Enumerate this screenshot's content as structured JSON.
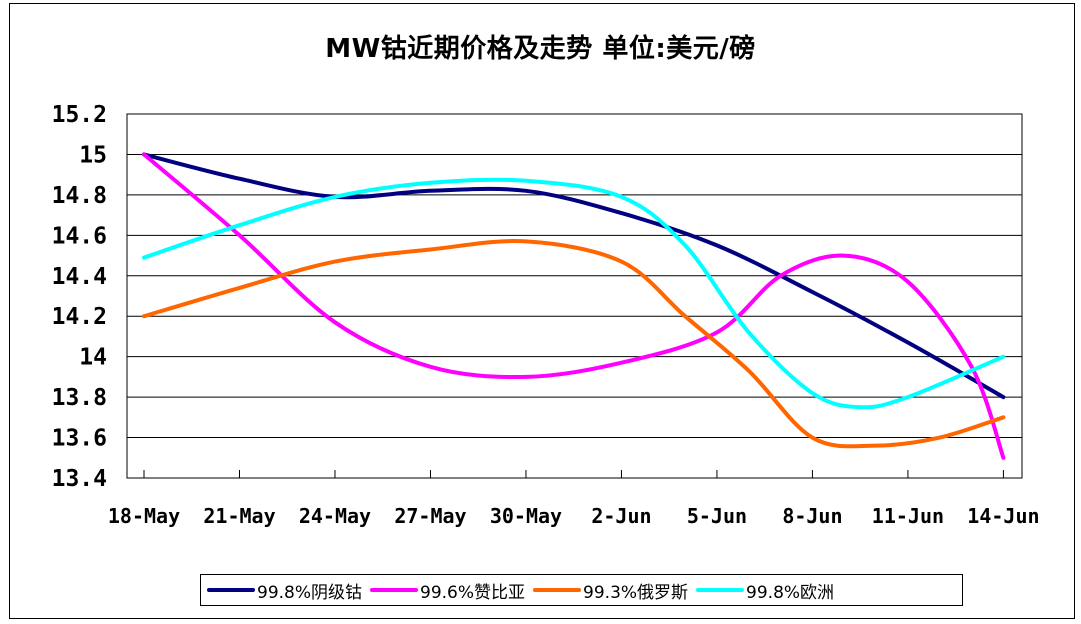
{
  "chart_data": {
    "type": "line",
    "title": "MW钴近期价格及走势 单位:美元/磅",
    "xlabel": "",
    "ylabel": "",
    "ylim": [
      13.4,
      15.2
    ],
    "yticks": [
      "15.2",
      "15",
      "14.8",
      "14.6",
      "14.4",
      "14.2",
      "14",
      "13.8",
      "13.6",
      "13.4"
    ],
    "x_tick_labels": [
      "18-May",
      "21-May",
      "24-May",
      "27-May",
      "30-May",
      "2-Jun",
      "5-Jun",
      "8-Jun",
      "11-Jun",
      "14-Jun"
    ],
    "grid": true,
    "legend_position": "bottom",
    "series": [
      {
        "name": "99.8%阴级钴",
        "color": "#000080",
        "points": [
          [
            0,
            15.0
          ],
          [
            3,
            14.88
          ],
          [
            6,
            14.79
          ],
          [
            9,
            14.82
          ],
          [
            12,
            14.82
          ],
          [
            15,
            14.71
          ],
          [
            18,
            14.55
          ],
          [
            21,
            14.32
          ],
          [
            24,
            14.07
          ],
          [
            27,
            13.8
          ]
        ]
      },
      {
        "name": "99.6%赞比亚",
        "color": "#ff00ff",
        "points": [
          [
            0,
            15.0
          ],
          [
            3,
            14.6
          ],
          [
            6,
            14.17
          ],
          [
            9,
            13.95
          ],
          [
            12,
            13.9
          ],
          [
            15,
            13.97
          ],
          [
            18,
            14.12
          ],
          [
            20,
            14.4
          ],
          [
            22,
            14.5
          ],
          [
            24,
            14.37
          ],
          [
            26,
            13.95
          ],
          [
            27,
            13.5
          ]
        ]
      },
      {
        "name": "99.3%俄罗斯",
        "color": "#ff6600",
        "points": [
          [
            0,
            14.2
          ],
          [
            3,
            14.34
          ],
          [
            6,
            14.47
          ],
          [
            9,
            14.53
          ],
          [
            12,
            14.57
          ],
          [
            15,
            14.47
          ],
          [
            17,
            14.2
          ],
          [
            19,
            13.93
          ],
          [
            21,
            13.6
          ],
          [
            23,
            13.56
          ],
          [
            25,
            13.6
          ],
          [
            27,
            13.7
          ]
        ]
      },
      {
        "name": "99.8%欧洲",
        "color": "#00ffff",
        "points": [
          [
            0,
            14.49
          ],
          [
            3,
            14.65
          ],
          [
            6,
            14.79
          ],
          [
            9,
            14.86
          ],
          [
            12,
            14.87
          ],
          [
            15,
            14.79
          ],
          [
            17,
            14.55
          ],
          [
            19,
            14.12
          ],
          [
            21,
            13.82
          ],
          [
            22.5,
            13.75
          ],
          [
            24,
            13.8
          ],
          [
            27,
            14.0
          ]
        ]
      }
    ]
  }
}
